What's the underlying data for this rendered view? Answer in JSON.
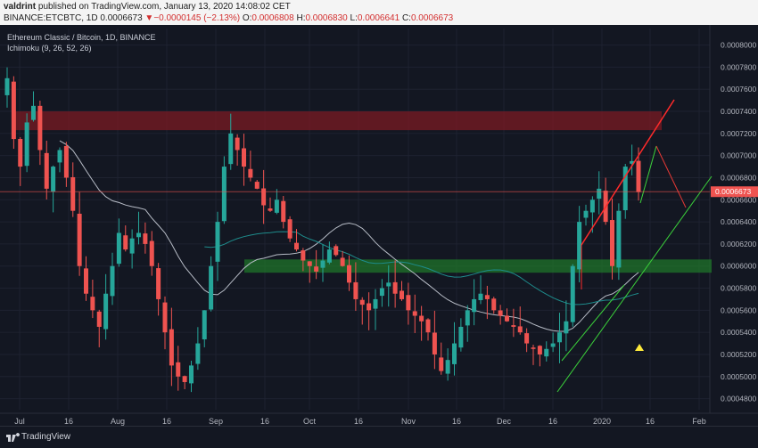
{
  "header": {
    "line1_user": "valdrint",
    "line1_rest": " published on TradingView.com, January 13, 2020 14:08:02 CET",
    "symbol": "BINANCE:ETCBTC, 1D",
    "last": "0.0006673",
    "change": "▼−0.0000145 (−2.13%)",
    "o_label": "O:",
    "o": "0.0006808",
    "h_label": "H:",
    "h": "0.0006830",
    "l_label": "L:",
    "l": "0.0006641",
    "c_label": "C:",
    "c": "0.0006673"
  },
  "legend": {
    "title": "Ethereum Classic / Bitcoin, 1D, BINANCE",
    "indicator": "Ichimoku (9, 26, 52, 26)"
  },
  "footer": {
    "brand": "TradingView"
  },
  "colors": {
    "background": "#131722",
    "up": "#26a69a",
    "down": "#ef5350",
    "resistance_zone": "#8b1a24",
    "support_zone": "#1f7a2a",
    "ma_light": "#b7bcc6",
    "ma_teal": "#1e8c8c"
  },
  "chart_data": {
    "type": "candlestick",
    "x_tick_labels": [
      "Jul",
      "16",
      "Aug",
      "16",
      "Sep",
      "16",
      "Oct",
      "16",
      "Nov",
      "16",
      "Dec",
      "16",
      "2020",
      "16",
      "Feb"
    ],
    "y_tick_labels": [
      "0.0008000",
      "0.0007800",
      "0.0007600",
      "0.0007400",
      "0.0007200",
      "0.0007000",
      "0.0006800",
      "0.0006600",
      "0.0006400",
      "0.0006200",
      "0.0006000",
      "0.0005800",
      "0.0005600",
      "0.0005400",
      "0.0005200",
      "0.0005000",
      "0.0004800"
    ],
    "ylim": [
      0.00047,
      0.000815
    ],
    "price_label": "0.0006673",
    "close_series": [
      0.00077,
      0.000715,
      0.00069,
      0.00073,
      0.000745,
      0.000705,
      0.00067,
      0.00069,
      0.000705,
      0.00068,
      0.00065,
      0.0006,
      0.000575,
      0.00056,
      0.000545,
      0.000575,
      0.0006,
      0.00063,
      0.000615,
      0.000625,
      0.00063,
      0.00062,
      0.0006,
      0.00057,
      0.00054,
      0.00051,
      0.0005,
      0.000495,
      0.00051,
      0.00053,
      0.00056,
      0.0006,
      0.00064,
      0.00069,
      0.00072,
      0.000705,
      0.00069,
      0.00068,
      0.00067,
      0.000655,
      0.00065,
      0.00066,
      0.00064,
      0.000625,
      0.000615,
      0.000605,
      0.0006,
      0.000595,
      0.000605,
      0.000615,
      0.00061,
      0.0006,
      0.000585,
      0.00057,
      0.000565,
      0.00056,
      0.00057,
      0.00058,
      0.000585,
      0.000575,
      0.00057,
      0.00056,
      0.000555,
      0.00055,
      0.00054,
      0.00052,
      0.000505,
      0.000515,
      0.00053,
      0.000545,
      0.00056,
      0.00057,
      0.000575,
      0.00057,
      0.00056,
      0.000555,
      0.00055,
      0.000545,
      0.00054,
      0.00053,
      0.000525,
      0.00052,
      0.000525,
      0.00053,
      0.00054,
      0.00055,
      0.0006,
      0.00064,
      0.00065,
      0.00066,
      0.00067,
      0.00064,
      0.0006,
      0.00065,
      0.00069,
      0.000695,
      0.000667
    ],
    "zones": [
      {
        "name": "resistance",
        "from": 0.000723,
        "to": 0.00074
      },
      {
        "name": "support",
        "from": 0.000594,
        "to": 0.000606
      }
    ]
  }
}
